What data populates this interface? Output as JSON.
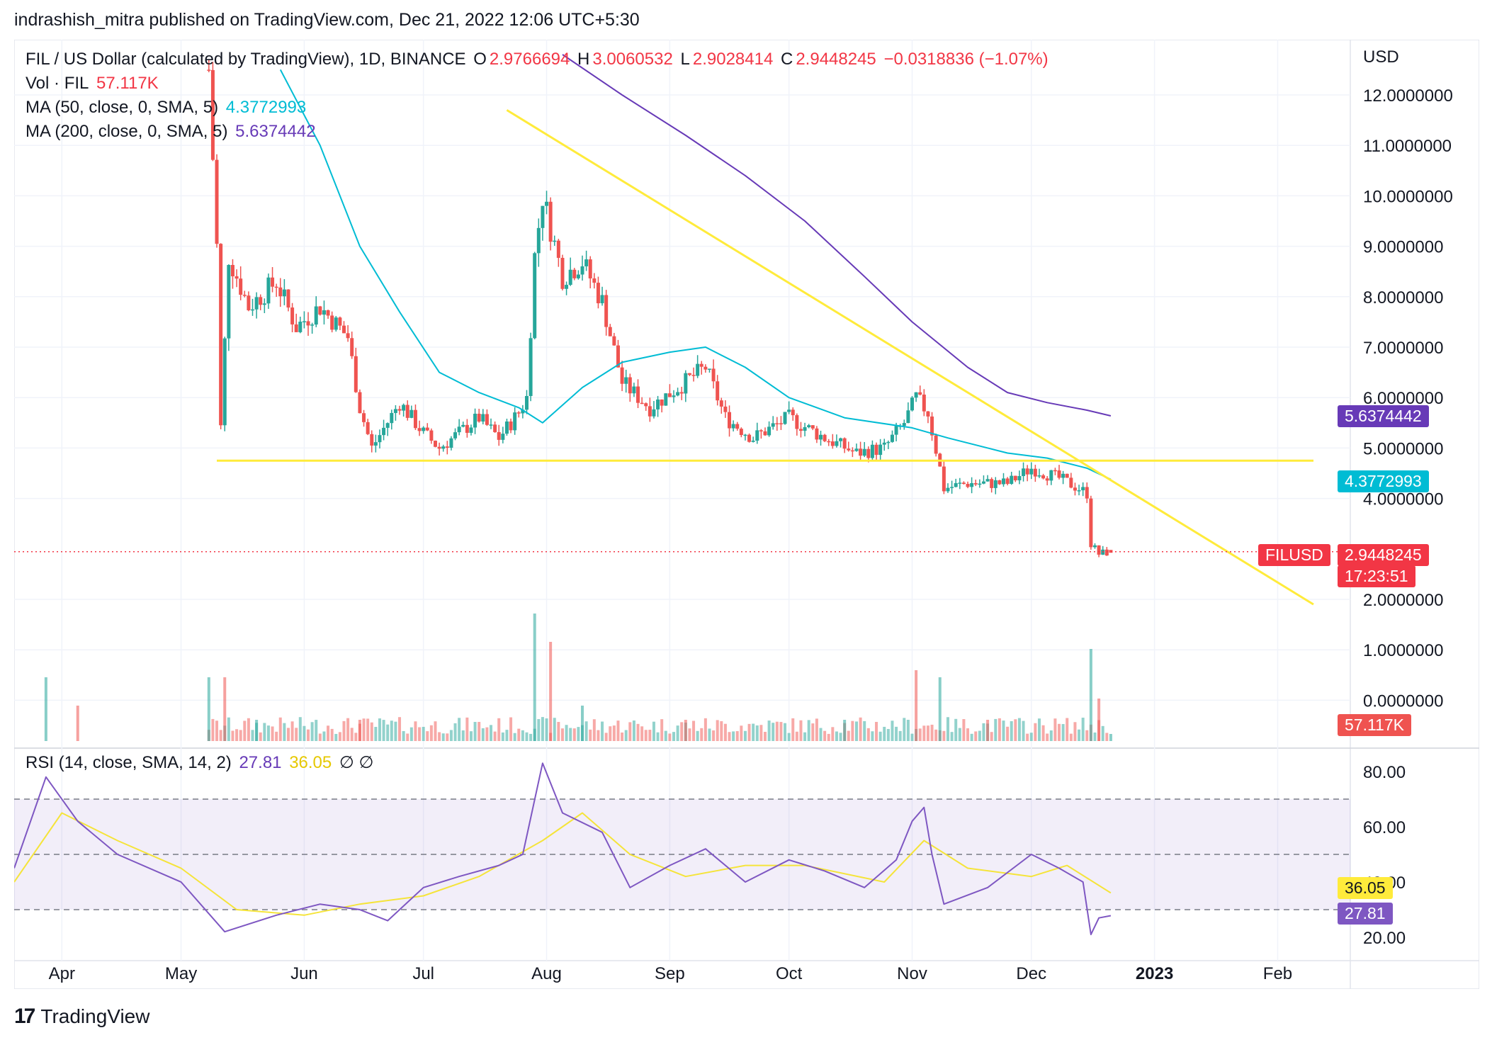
{
  "header": {
    "publish_line": "indrashish_mitra published on TradingView.com, Dec 21, 2022 12:06 UTC+5:30"
  },
  "legend": {
    "symbol": "FIL / US Dollar (calculated by TradingView), 1D, BINANCE",
    "o_label": "O",
    "o_value": "2.9766694",
    "h_label": "H",
    "h_value": "3.0060532",
    "l_label": "L",
    "l_value": "2.9028414",
    "c_label": "C",
    "c_value": "2.9448245",
    "change": "−0.0318836 (−1.07%)",
    "vol_label": "Vol · FIL",
    "vol_value": "57.117K",
    "ma50_label": "MA (50, close, 0, SMA, 5)",
    "ma50_value": "4.3772993",
    "ma200_label": "MA (200, close, 0, SMA, 5)",
    "ma200_value": "5.6374442",
    "rsi_label": "RSI (14, close, SMA, 14, 2)",
    "rsi_value": "27.81",
    "rsi_ma_value": "36.05",
    "rsi_icons": "∅ ∅"
  },
  "price_axis": {
    "currency": "USD",
    "ticks": [
      "12.0000000",
      "11.0000000",
      "10.0000000",
      "9.0000000",
      "8.0000000",
      "7.0000000",
      "6.0000000",
      "5.0000000",
      "4.0000000",
      "2.0000000",
      "1.0000000",
      "0.0000000"
    ],
    "tick_values": [
      12,
      11,
      10,
      9,
      8,
      7,
      6,
      5,
      4,
      2,
      1,
      0
    ]
  },
  "rsi_axis": {
    "ticks": [
      "80.00",
      "60.00",
      "40.00",
      "20.00"
    ],
    "tick_values": [
      80,
      60,
      40,
      20
    ],
    "band_upper": 70,
    "band_lower": 30
  },
  "time_axis": {
    "labels": [
      "Apr",
      "May",
      "Jun",
      "Jul",
      "Aug",
      "Sep",
      "Oct",
      "Nov",
      "Dec",
      "2023",
      "Feb"
    ]
  },
  "tags": {
    "ma200": "5.6374442",
    "ma50": "4.3772993",
    "symbol": "FILUSD",
    "price": "2.9448245",
    "countdown": "17:23:51",
    "volume": "57.117K",
    "rsi_ma": "36.05",
    "rsi": "27.81"
  },
  "colors": {
    "up": "#26a69a",
    "down": "#ef5350",
    "ma50": "#00bcd4",
    "ma200": "#673ab7",
    "trendline": "#ffeb3b",
    "rsi": "#7e57c2",
    "rsi_ma": "#f5e43a",
    "price_line": "#f23645"
  },
  "footer": {
    "brand": "TradingView",
    "mark": "17"
  },
  "chart_data": {
    "type": "candlestick",
    "title": "FIL / US Dollar (calculated by TradingView), 1D, BINANCE",
    "ylabel": "USD",
    "ylim": [
      0,
      12.5
    ],
    "x_range": [
      "2022-03-20",
      "2023-02-15"
    ],
    "price_series": [
      [
        "2022-05-08",
        12.5
      ],
      [
        "2022-05-10",
        9.0
      ],
      [
        "2022-05-11",
        5.4
      ],
      [
        "2022-05-13",
        8.8
      ],
      [
        "2022-05-18",
        7.8
      ],
      [
        "2022-05-25",
        8.3
      ],
      [
        "2022-05-30",
        7.4
      ],
      [
        "2022-06-05",
        7.8
      ],
      [
        "2022-06-12",
        7.2
      ],
      [
        "2022-06-15",
        5.8
      ],
      [
        "2022-06-18",
        5.0
      ],
      [
        "2022-06-25",
        5.9
      ],
      [
        "2022-07-01",
        5.3
      ],
      [
        "2022-07-05",
        5.0
      ],
      [
        "2022-07-15",
        5.6
      ],
      [
        "2022-07-20",
        5.2
      ],
      [
        "2022-07-25",
        5.7
      ],
      [
        "2022-07-27",
        6.0
      ],
      [
        "2022-07-29",
        8.8
      ],
      [
        "2022-07-31",
        10.0
      ],
      [
        "2022-08-05",
        8.4
      ],
      [
        "2022-08-10",
        8.7
      ],
      [
        "2022-08-15",
        7.9
      ],
      [
        "2022-08-20",
        6.3
      ],
      [
        "2022-08-27",
        5.8
      ],
      [
        "2022-09-03",
        6.2
      ],
      [
        "2022-09-10",
        6.6
      ],
      [
        "2022-09-15",
        5.6
      ],
      [
        "2022-09-22",
        5.2
      ],
      [
        "2022-10-01",
        5.6
      ],
      [
        "2022-10-10",
        5.2
      ],
      [
        "2022-10-18",
        4.9
      ],
      [
        "2022-10-25",
        5.0
      ],
      [
        "2022-10-30",
        5.5
      ],
      [
        "2022-11-02",
        6.0
      ],
      [
        "2022-11-05",
        5.7
      ],
      [
        "2022-11-08",
        4.6
      ],
      [
        "2022-11-09",
        4.2
      ],
      [
        "2022-11-15",
        4.3
      ],
      [
        "2022-11-25",
        4.3
      ],
      [
        "2022-12-01",
        4.6
      ],
      [
        "2022-12-08",
        4.4
      ],
      [
        "2022-12-13",
        4.2
      ],
      [
        "2022-12-15",
        4.1
      ],
      [
        "2022-12-16",
        3.1
      ],
      [
        "2022-12-18",
        2.9
      ],
      [
        "2022-12-21",
        2.9448245
      ]
    ],
    "ma50_series": [
      [
        "2022-05-26",
        12.5
      ],
      [
        "2022-06-05",
        11.0
      ],
      [
        "2022-06-15",
        9.0
      ],
      [
        "2022-06-25",
        7.7
      ],
      [
        "2022-07-05",
        6.5
      ],
      [
        "2022-07-15",
        6.1
      ],
      [
        "2022-07-25",
        5.8
      ],
      [
        "2022-07-31",
        5.5
      ],
      [
        "2022-08-10",
        6.2
      ],
      [
        "2022-08-20",
        6.7
      ],
      [
        "2022-09-01",
        6.9
      ],
      [
        "2022-09-10",
        7.0
      ],
      [
        "2022-09-20",
        6.6
      ],
      [
        "2022-10-01",
        6.0
      ],
      [
        "2022-10-15",
        5.6
      ],
      [
        "2022-11-01",
        5.4
      ],
      [
        "2022-11-10",
        5.2
      ],
      [
        "2022-11-25",
        4.9
      ],
      [
        "2022-12-05",
        4.8
      ],
      [
        "2022-12-15",
        4.6
      ],
      [
        "2022-12-21",
        4.3772993
      ]
    ],
    "ma200_series": [
      [
        "2022-08-05",
        12.8
      ],
      [
        "2022-08-20",
        12.0
      ],
      [
        "2022-09-05",
        11.2
      ],
      [
        "2022-09-20",
        10.4
      ],
      [
        "2022-10-05",
        9.5
      ],
      [
        "2022-10-20",
        8.4
      ],
      [
        "2022-11-01",
        7.5
      ],
      [
        "2022-11-15",
        6.6
      ],
      [
        "2022-11-25",
        6.1
      ],
      [
        "2022-12-05",
        5.9
      ],
      [
        "2022-12-15",
        5.75
      ],
      [
        "2022-12-21",
        5.6374442
      ]
    ],
    "trendlines": [
      {
        "name": "support",
        "points": [
          [
            "2022-05-10",
            4.75
          ],
          [
            "2023-02-10",
            4.75
          ]
        ]
      },
      {
        "name": "resistance",
        "points": [
          [
            "2022-07-22",
            11.7
          ],
          [
            "2023-02-10",
            1.9
          ]
        ]
      }
    ],
    "volume_series": [
      [
        "2022-03-28",
        0.45
      ],
      [
        "2022-04-05",
        0.25
      ],
      [
        "2022-05-08",
        0.45
      ],
      [
        "2022-05-12",
        0.45
      ],
      [
        "2022-05-20",
        0.15
      ],
      [
        "2022-06-15",
        0.15
      ],
      [
        "2022-07-29",
        0.9
      ],
      [
        "2022-08-02",
        0.7
      ],
      [
        "2022-08-10",
        0.25
      ],
      [
        "2022-09-05",
        0.15
      ],
      [
        "2022-10-15",
        0.15
      ],
      [
        "2022-11-02",
        0.5
      ],
      [
        "2022-11-08",
        0.45
      ],
      [
        "2022-11-20",
        0.15
      ],
      [
        "2022-12-16",
        0.65
      ],
      [
        "2022-12-18",
        0.3
      ],
      [
        "2022-12-21",
        0.05
      ]
    ],
    "rsi": {
      "band": [
        30,
        70
      ],
      "rsi_series": [
        [
          "2022-03-20",
          45
        ],
        [
          "2022-03-28",
          78
        ],
        [
          "2022-04-05",
          62
        ],
        [
          "2022-04-15",
          50
        ],
        [
          "2022-05-01",
          40
        ],
        [
          "2022-05-12",
          22
        ],
        [
          "2022-05-25",
          28
        ],
        [
          "2022-06-05",
          32
        ],
        [
          "2022-06-15",
          30
        ],
        [
          "2022-06-22",
          26
        ],
        [
          "2022-07-01",
          38
        ],
        [
          "2022-07-10",
          42
        ],
        [
          "2022-07-20",
          46
        ],
        [
          "2022-07-26",
          50
        ],
        [
          "2022-07-31",
          83
        ],
        [
          "2022-08-05",
          65
        ],
        [
          "2022-08-15",
          58
        ],
        [
          "2022-08-22",
          38
        ],
        [
          "2022-09-01",
          46
        ],
        [
          "2022-09-10",
          52
        ],
        [
          "2022-09-20",
          40
        ],
        [
          "2022-10-01",
          48
        ],
        [
          "2022-10-10",
          44
        ],
        [
          "2022-10-20",
          38
        ],
        [
          "2022-10-28",
          48
        ],
        [
          "2022-11-01",
          62
        ],
        [
          "2022-11-04",
          67
        ],
        [
          "2022-11-06",
          50
        ],
        [
          "2022-11-09",
          32
        ],
        [
          "2022-11-20",
          38
        ],
        [
          "2022-12-01",
          50
        ],
        [
          "2022-12-08",
          45
        ],
        [
          "2022-12-14",
          40
        ],
        [
          "2022-12-16",
          21
        ],
        [
          "2022-12-18",
          27
        ],
        [
          "2022-12-21",
          27.81
        ]
      ],
      "rsi_ma_series": [
        [
          "2022-03-20",
          40
        ],
        [
          "2022-04-01",
          65
        ],
        [
          "2022-04-15",
          55
        ],
        [
          "2022-05-01",
          45
        ],
        [
          "2022-05-15",
          30
        ],
        [
          "2022-06-01",
          28
        ],
        [
          "2022-06-15",
          32
        ],
        [
          "2022-07-01",
          35
        ],
        [
          "2022-07-15",
          42
        ],
        [
          "2022-07-31",
          55
        ],
        [
          "2022-08-10",
          65
        ],
        [
          "2022-08-22",
          50
        ],
        [
          "2022-09-05",
          42
        ],
        [
          "2022-09-20",
          46
        ],
        [
          "2022-10-05",
          46
        ],
        [
          "2022-10-25",
          40
        ],
        [
          "2022-11-04",
          55
        ],
        [
          "2022-11-15",
          45
        ],
        [
          "2022-12-01",
          42
        ],
        [
          "2022-12-10",
          46
        ],
        [
          "2022-12-21",
          36.05
        ]
      ]
    }
  }
}
